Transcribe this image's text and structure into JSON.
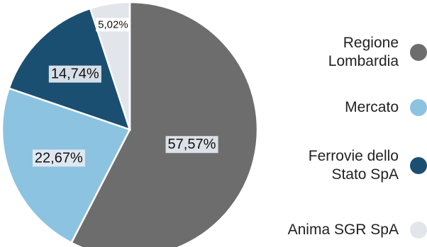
{
  "chart_data": {
    "type": "pie",
    "categories": [
      "Regione Lombardia",
      "Mercato",
      "Ferrovie dello Stato SpA",
      "Anima SGR SpA"
    ],
    "values": [
      57.57,
      22.67,
      14.74,
      5.02
    ],
    "data_labels": [
      "57,57%",
      "22,67%",
      "14,74%",
      "5,02%"
    ],
    "colors": [
      "#6d6d6d",
      "#8cc3e0",
      "#1b4f72",
      "#e2e6ea"
    ],
    "start_angle_deg": 0,
    "direction": "clockwise",
    "legend_position": "right"
  },
  "legend": {
    "items": [
      {
        "label": "Regione Lombardia",
        "color": "#6d6d6d"
      },
      {
        "label": "Mercato",
        "color": "#8cc3e0"
      },
      {
        "label": "Ferrovie dello Stato SpA",
        "color": "#1b4f72"
      },
      {
        "label": "Anima SGR SpA",
        "color": "#e2e6ea"
      }
    ]
  }
}
